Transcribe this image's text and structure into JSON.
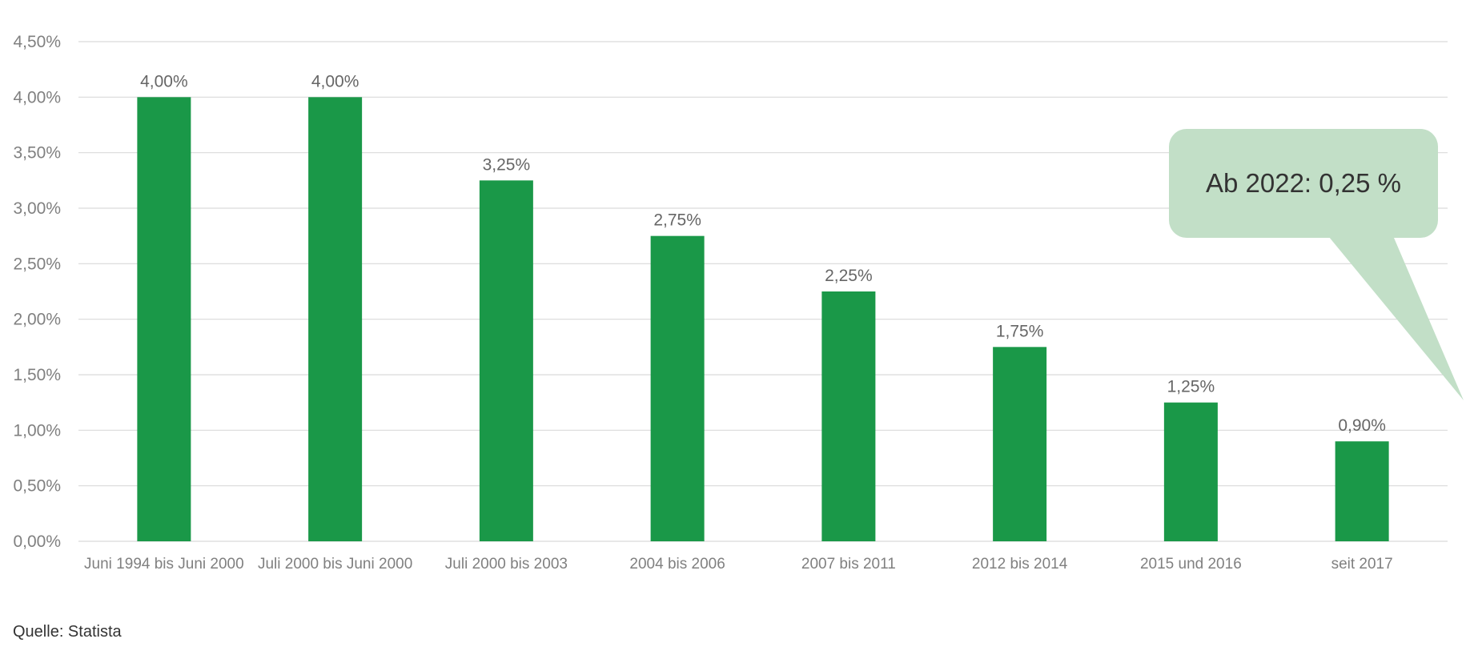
{
  "chart_data": {
    "type": "bar",
    "categories": [
      "Juni 1994 bis Juni 2000",
      "Juli 2000 bis Juni 2000",
      "Juli 2000 bis 2003",
      "2004 bis 2006",
      "2007 bis 2011",
      "2012 bis 2014",
      "2015 und 2016",
      "seit 2017"
    ],
    "values": [
      4.0,
      4.0,
      3.25,
      2.75,
      2.25,
      1.75,
      1.25,
      0.9
    ],
    "data_labels": [
      "4,00%",
      "4,00%",
      "3,25%",
      "2,75%",
      "2,25%",
      "1,75%",
      "1,25%",
      "0,90%"
    ],
    "y_ticks": [
      0,
      0.5,
      1.0,
      1.5,
      2.0,
      2.5,
      3.0,
      3.5,
      4.0,
      4.5
    ],
    "y_tick_labels": [
      "0,00%",
      "0,50%",
      "1,00%",
      "1,50%",
      "2,00%",
      "2,50%",
      "3,00%",
      "3,50%",
      "4,00%",
      "4,50%"
    ],
    "ylim": [
      0,
      4.5
    ],
    "grid": true,
    "title": "",
    "xlabel": "",
    "ylabel": "",
    "annotation": "Ab 2022: 0,25 %"
  },
  "source_note": "Quelle: Statista",
  "colors": {
    "bar": "#1a9848",
    "grid": "#d9d9d9",
    "axis_text": "#808080",
    "data_label": "#666666",
    "callout_fill": "#c2dfc7",
    "callout_text": "#333333"
  }
}
